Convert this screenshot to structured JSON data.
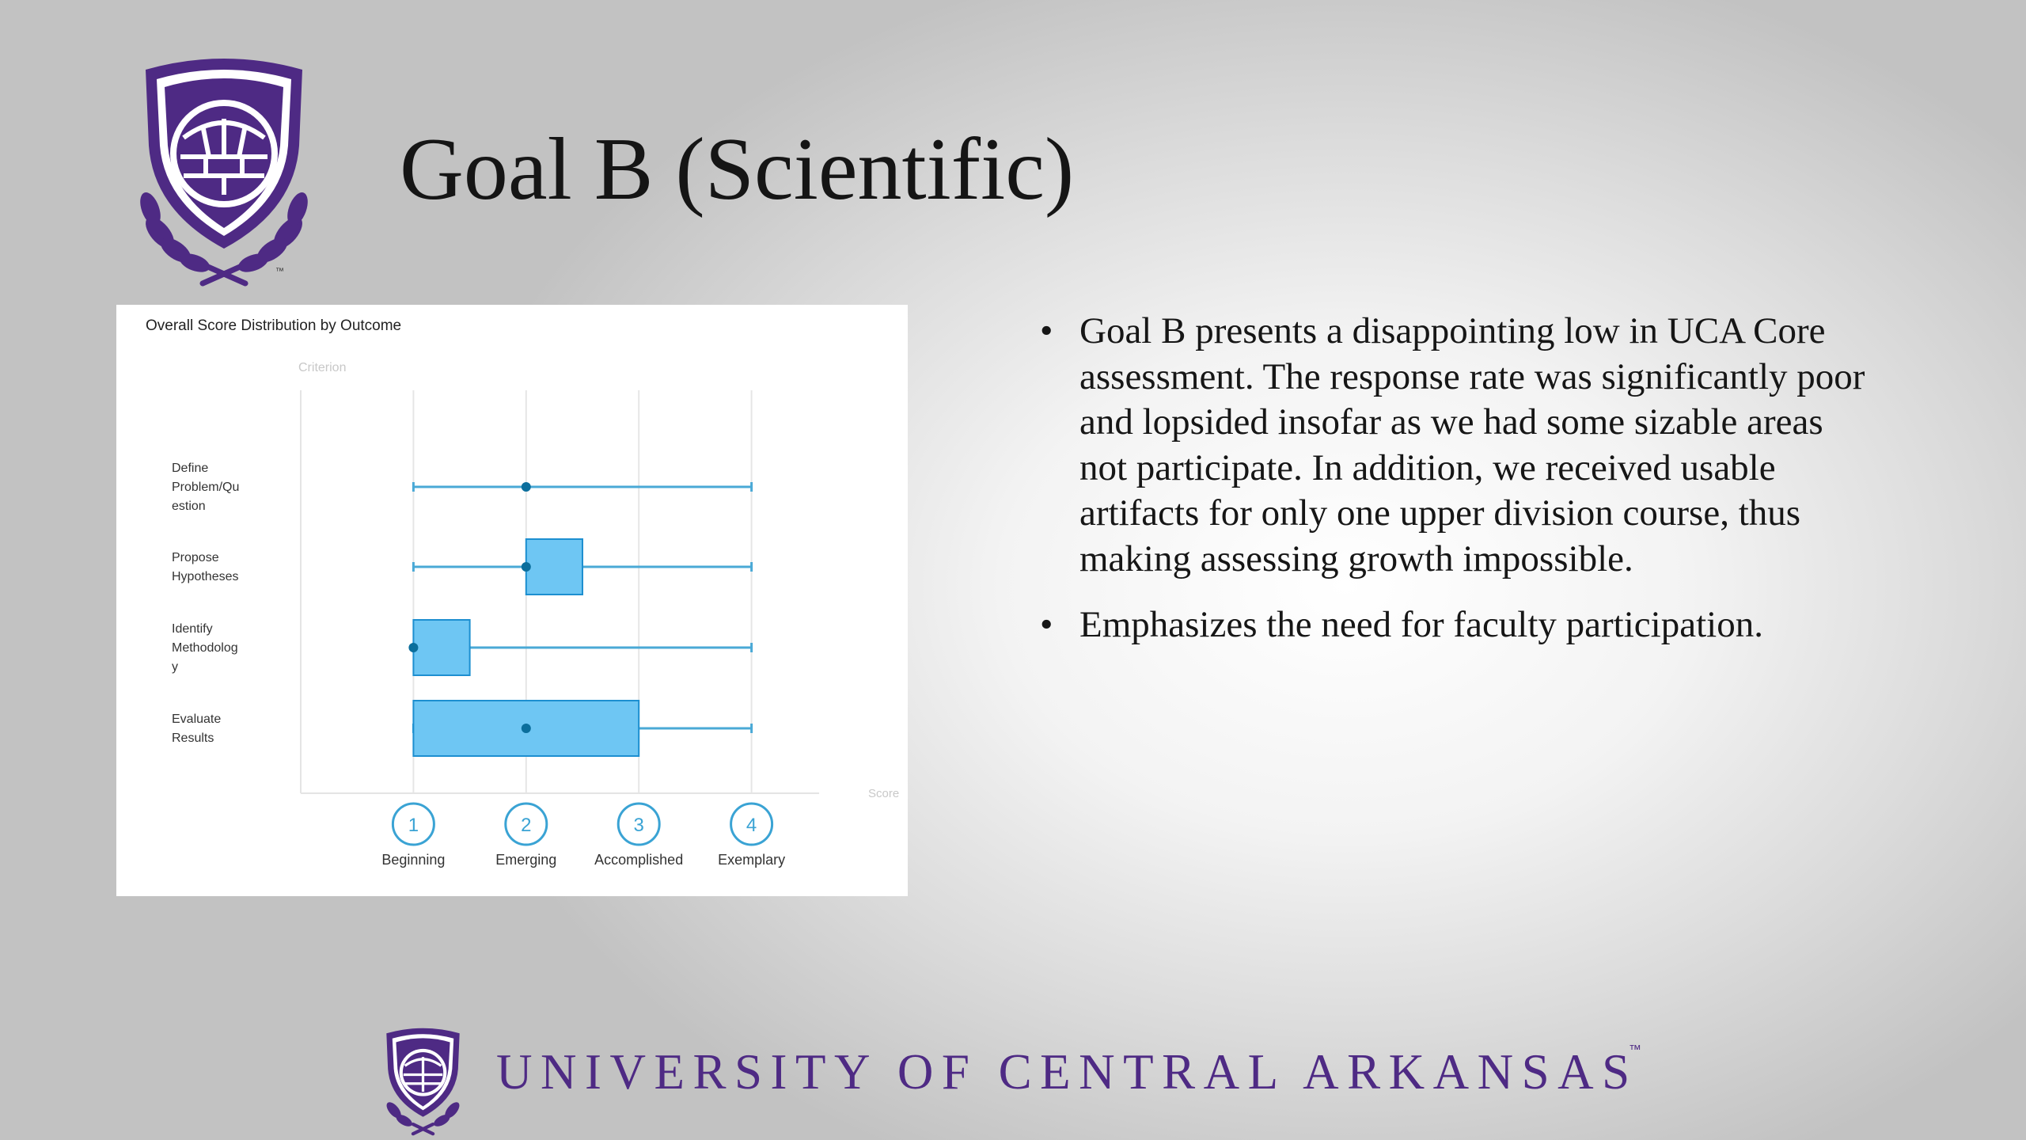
{
  "slide": {
    "title": "Goal B (Scientific)",
    "bullets": [
      "Goal B presents a disappointing low in UCA Core assessment. The response rate was significantly poor and lopsided insofar as we had some sizable areas not participate. In addition, we received usable artifacts for only one upper division course, thus making assessing growth impossible.",
      "Emphasizes the need for faculty participation."
    ],
    "bullet_symbol": "•",
    "footer": {
      "wordmark": "UNIVERSITY OF CENTRAL ARKANSAS",
      "tm": "™"
    },
    "crest_tm": "™"
  },
  "colors": {
    "purple": "#4e2a84",
    "box_fill": "#6ec6f3",
    "box_stroke": "#1d8fd0",
    "whisker": "#4aa9d6",
    "median": "#0b6e9c"
  },
  "chart_data": {
    "type": "box",
    "title": "Overall Score Distribution by Outcome",
    "ylabel": "Criterion",
    "xlabel": "Score",
    "xlim": [
      0,
      4.6
    ],
    "ticks": [
      {
        "value": 1,
        "label": "Beginning"
      },
      {
        "value": 2,
        "label": "Emerging"
      },
      {
        "value": 3,
        "label": "Accomplished"
      },
      {
        "value": 4,
        "label": "Exemplary"
      }
    ],
    "categories": [
      {
        "label_lines": [
          "Define",
          "Problem/Qu",
          "estion"
        ],
        "min": 1,
        "q1": 2,
        "median": 2,
        "q3": 2,
        "max": 4
      },
      {
        "label_lines": [
          "Propose",
          "Hypotheses"
        ],
        "min": 1,
        "q1": 2,
        "median": 2,
        "q3": 2.5,
        "max": 4
      },
      {
        "label_lines": [
          "Identify",
          "Methodolog",
          "y"
        ],
        "min": 1,
        "q1": 1,
        "median": 1,
        "q3": 1.5,
        "max": 4
      },
      {
        "label_lines": [
          "Evaluate",
          "Results"
        ],
        "min": 1,
        "q1": 1,
        "median": 2,
        "q3": 3,
        "max": 4
      }
    ]
  }
}
